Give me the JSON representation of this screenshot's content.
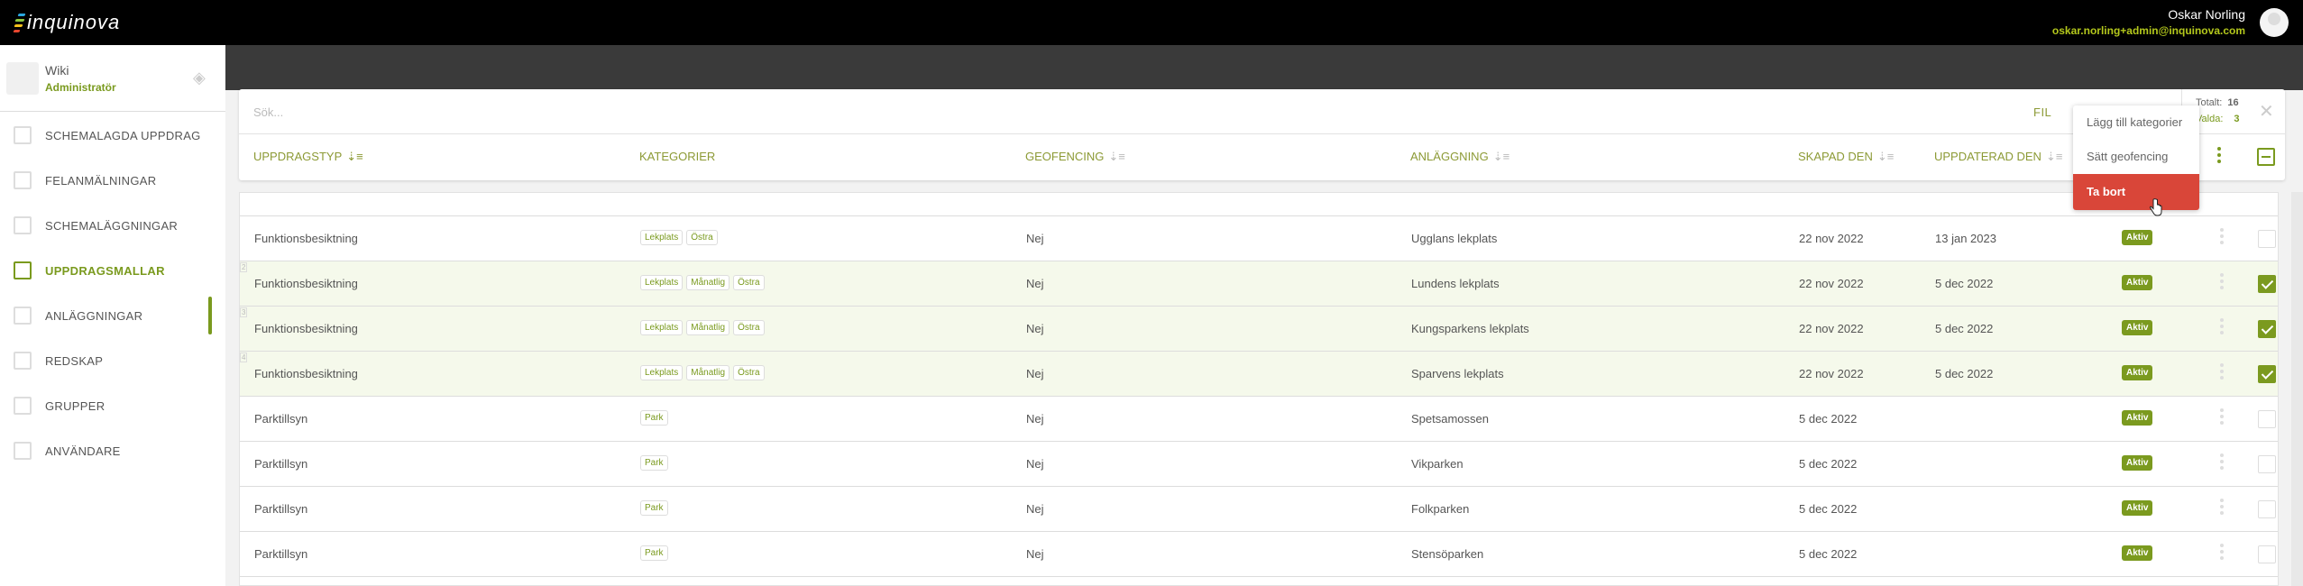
{
  "app": {
    "logo_text": "inquinova",
    "user_name": "Oskar Norling",
    "user_email": "oskar.norling+admin@inquinova.com"
  },
  "org": {
    "name": "Wiki",
    "role": "Administratör"
  },
  "sidebar": {
    "items": [
      {
        "label": "SCHEMALAGDA UPPDRAG",
        "icon": "clipboard-icon"
      },
      {
        "label": "FELANMÄLNINGAR",
        "icon": "alert-icon"
      },
      {
        "label": "SCHEMALÄGGNINGAR",
        "icon": "calendar-icon"
      },
      {
        "label": "UPPDRAGSMALLAR",
        "icon": "map-icon",
        "active": true
      },
      {
        "label": "ANLÄGGNINGAR",
        "icon": "building-icon"
      },
      {
        "label": "REDSKAP",
        "icon": "equipment-icon"
      },
      {
        "label": "GRUPPER",
        "icon": "group-icon"
      },
      {
        "label": "ANVÄNDARE",
        "icon": "user-icon"
      }
    ]
  },
  "toolbar": {
    "search_placeholder": "Sök...",
    "filter_label": "FIL",
    "total_label": "Totalt:",
    "total_value": "16",
    "selected_label": "Valda:",
    "selected_value": "3"
  },
  "table": {
    "headers": [
      "UPPDRAGSTYP",
      "KATEGORIER",
      "GEOFENCING",
      "ANLÄGGNING",
      "SKAPAD DEN",
      "UPPDATERAD DEN"
    ],
    "rows": [
      {
        "type": "Funktionsbesiktning",
        "categories": [
          "Lekplats",
          "Östra"
        ],
        "geofencing": "Nej",
        "facility": "Ugglans lekplats",
        "created": "22 nov 2022",
        "updated": "13 jan 2023",
        "status": "Aktiv",
        "selected": false,
        "index": ""
      },
      {
        "type": "Funktionsbesiktning",
        "categories": [
          "Lekplats",
          "Månatlig",
          "Östra"
        ],
        "geofencing": "Nej",
        "facility": "Lundens lekplats",
        "created": "22 nov 2022",
        "updated": "5 dec 2022",
        "status": "Aktiv",
        "selected": true,
        "index": "2"
      },
      {
        "type": "Funktionsbesiktning",
        "categories": [
          "Lekplats",
          "Månatlig",
          "Östra"
        ],
        "geofencing": "Nej",
        "facility": "Kungsparkens lekplats",
        "created": "22 nov 2022",
        "updated": "5 dec 2022",
        "status": "Aktiv",
        "selected": true,
        "index": "3"
      },
      {
        "type": "Funktionsbesiktning",
        "categories": [
          "Lekplats",
          "Månatlig",
          "Östra"
        ],
        "geofencing": "Nej",
        "facility": "Sparvens lekplats",
        "created": "22 nov 2022",
        "updated": "5 dec 2022",
        "status": "Aktiv",
        "selected": true,
        "index": "4"
      },
      {
        "type": "Parktillsyn",
        "categories": [
          "Park"
        ],
        "geofencing": "Nej",
        "facility": "Spetsamossen",
        "created": "5 dec 2022",
        "updated": "",
        "status": "Aktiv",
        "selected": false,
        "index": ""
      },
      {
        "type": "Parktillsyn",
        "categories": [
          "Park"
        ],
        "geofencing": "Nej",
        "facility": "Vikparken",
        "created": "5 dec 2022",
        "updated": "",
        "status": "Aktiv",
        "selected": false,
        "index": ""
      },
      {
        "type": "Parktillsyn",
        "categories": [
          "Park"
        ],
        "geofencing": "Nej",
        "facility": "Folkparken",
        "created": "5 dec 2022",
        "updated": "",
        "status": "Aktiv",
        "selected": false,
        "index": ""
      },
      {
        "type": "Parktillsyn",
        "categories": [
          "Park"
        ],
        "geofencing": "Nej",
        "facility": "Stensöparken",
        "created": "5 dec 2022",
        "updated": "",
        "status": "Aktiv",
        "selected": false,
        "index": ""
      }
    ]
  },
  "menu": {
    "items": [
      "Lägg till kategorier",
      "Sätt geofencing",
      "Ta bort"
    ]
  },
  "colors": {
    "accent": "#7a9a1e",
    "danger": "#d94639",
    "selected_row": "#f5f9eb",
    "topbar": "#000000"
  }
}
